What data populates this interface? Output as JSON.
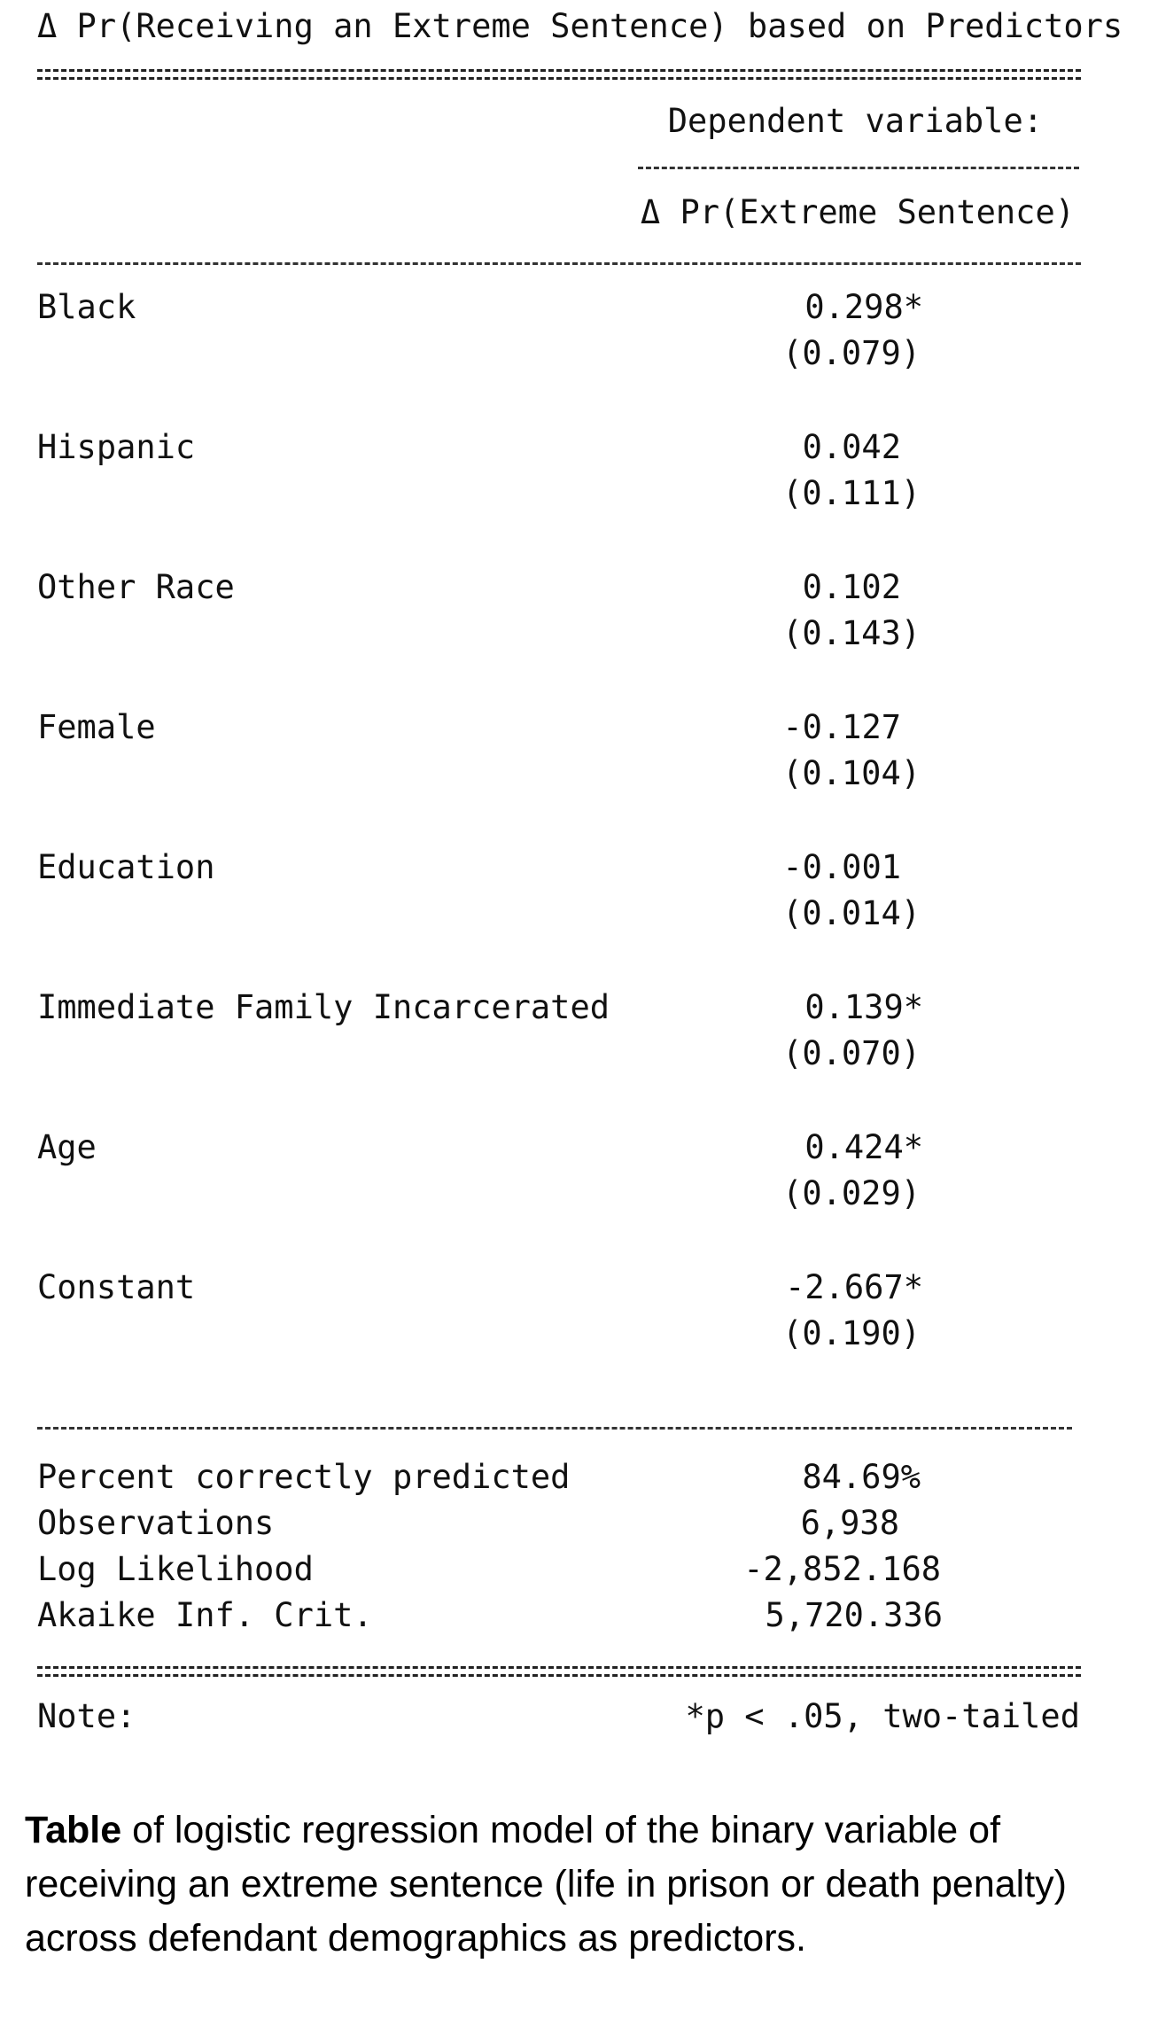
{
  "title": "Δ Pr(Receiving an Extreme Sentence) based on Predictors",
  "header": {
    "dependent_label": "Dependent variable:",
    "column_label": "Δ Pr(Extreme Sentence)"
  },
  "rows": [
    {
      "label": "Black",
      "coef": "0.298*",
      "se": "(0.079)"
    },
    {
      "label": "Hispanic",
      "coef": "0.042",
      "se": "(0.111)"
    },
    {
      "label": "Other Race",
      "coef": "0.102",
      "se": "(0.143)"
    },
    {
      "label": "Female",
      "coef": "-0.127",
      "se": "(0.104)"
    },
    {
      "label": "Education",
      "coef": "-0.001",
      "se": "(0.014)"
    },
    {
      "label": "Immediate Family Incarcerated",
      "coef": "0.139*",
      "se": "(0.070)"
    },
    {
      "label": "Age",
      "coef": "0.424*",
      "se": "(0.029)"
    },
    {
      "label": "Constant",
      "coef": "-2.667*",
      "se": "(0.190)"
    }
  ],
  "stats": [
    {
      "label": "Percent correctly predicted",
      "value": "84.69%"
    },
    {
      "label": "Observations",
      "value": "6,938"
    },
    {
      "label": "Log Likelihood",
      "value": "-2,852.168"
    },
    {
      "label": "Akaike Inf. Crit.",
      "value": "5,720.336"
    }
  ],
  "note": {
    "label": "Note:",
    "text": "*p < .05, two-tailed"
  },
  "caption": {
    "bold": "Table",
    "text": " of logistic regression model of the binary variable of receiving an extreme sentence (life in prison or death penalty) across defendant demographics as predictors."
  }
}
